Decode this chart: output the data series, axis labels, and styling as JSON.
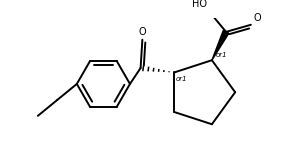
{
  "bg_color": "#ffffff",
  "line_color": "#000000",
  "line_width": 1.4,
  "fig_width": 3.02,
  "fig_height": 1.56,
  "dpi": 100,
  "xlim": [
    0,
    302
  ],
  "ylim": [
    0,
    156
  ]
}
